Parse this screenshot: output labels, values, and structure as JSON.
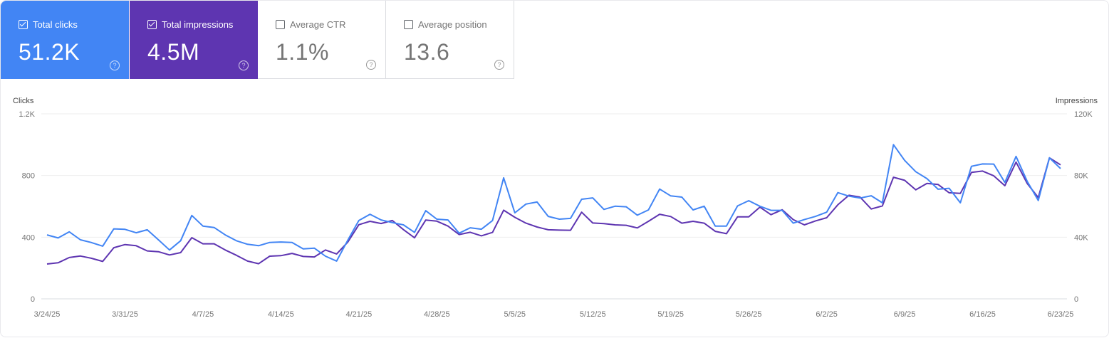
{
  "metrics": [
    {
      "label": "Total clicks",
      "value": "51.2K",
      "checked": true,
      "color": "#4285f4"
    },
    {
      "label": "Total impressions",
      "value": "4.5M",
      "checked": true,
      "color": "#5e35b1"
    },
    {
      "label": "Average CTR",
      "value": "1.1%",
      "checked": false
    },
    {
      "label": "Average position",
      "value": "13.6",
      "checked": false
    }
  ],
  "help_icon": "?",
  "chart_data": {
    "type": "line",
    "left_axis": {
      "title": "Clicks",
      "ticks": [
        "0",
        "400",
        "800",
        "1.2K"
      ],
      "range": [
        0,
        1200
      ]
    },
    "right_axis": {
      "title": "Impressions",
      "ticks": [
        "0",
        "40K",
        "80K",
        "120K"
      ],
      "range": [
        0,
        120000
      ]
    },
    "grid": true,
    "x_start": "2025-03-24",
    "x_end": "2025-06-23",
    "x_ticks": [
      "3/24/25",
      "3/31/25",
      "4/7/25",
      "4/14/25",
      "4/21/25",
      "4/28/25",
      "5/5/25",
      "5/12/25",
      "5/19/25",
      "5/26/25",
      "6/2/25",
      "6/9/25",
      "6/16/25",
      "6/23/25"
    ],
    "series": [
      {
        "name": "Clicks",
        "color": "#4285f4",
        "axis": "left",
        "values": [
          415,
          395,
          435,
          383,
          365,
          342,
          454,
          451,
          429,
          448,
          383,
          317,
          377,
          541,
          472,
          463,
          415,
          377,
          354,
          345,
          366,
          369,
          366,
          324,
          329,
          277,
          245,
          380,
          508,
          549,
          512,
          495,
          480,
          431,
          572,
          517,
          512,
          426,
          461,
          452,
          508,
          785,
          558,
          615,
          628,
          535,
          517,
          522,
          646,
          655,
          580,
          601,
          597,
          543,
          577,
          712,
          668,
          660,
          577,
          601,
          472,
          472,
          603,
          637,
          601,
          574,
          574,
          491,
          514,
          535,
          562,
          689,
          666,
          654,
          669,
          623,
          1000,
          898,
          825,
          780,
          711,
          717,
          623,
          860,
          875,
          874,
          755,
          924,
          763,
          638,
          915,
          845
        ]
      },
      {
        "name": "Impressions",
        "color": "#5e35b1",
        "axis": "right",
        "values": [
          22600,
          23400,
          26800,
          27800,
          26300,
          24300,
          33200,
          35200,
          34500,
          31100,
          30600,
          28500,
          30000,
          39700,
          35700,
          35700,
          31700,
          28300,
          24500,
          22800,
          27700,
          28000,
          29500,
          27500,
          27200,
          31700,
          29100,
          36800,
          48100,
          50300,
          48900,
          50800,
          44900,
          39600,
          51100,
          50400,
          47200,
          41700,
          43200,
          40900,
          43100,
          57500,
          52900,
          49100,
          46600,
          44800,
          44600,
          44500,
          56200,
          49200,
          48800,
          48000,
          47700,
          46000,
          50300,
          54900,
          53400,
          49100,
          50300,
          49100,
          43800,
          42300,
          53200,
          53200,
          59500,
          54600,
          57800,
          51400,
          48000,
          50600,
          52600,
          61000,
          67200,
          66000,
          58300,
          60300,
          78900,
          76900,
          70700,
          74900,
          74200,
          68800,
          68400,
          82000,
          82900,
          79800,
          73400,
          88700,
          74900,
          65700,
          91500,
          86900
        ]
      }
    ]
  }
}
